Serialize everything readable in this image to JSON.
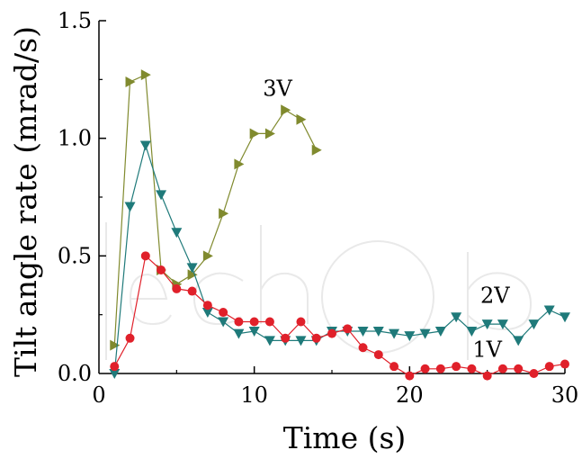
{
  "chart_data": {
    "type": "line",
    "xlabel": "Time (s)",
    "ylabel": "Tilt angle rate (mrad/s)",
    "xlim": [
      0,
      30
    ],
    "ylim": [
      0,
      1.5
    ],
    "x_ticks": [
      "0",
      "10",
      "20",
      "30"
    ],
    "y_ticks": [
      "0.0",
      "0.5",
      "1.0",
      "1.5"
    ],
    "grid": false,
    "watermark": "IntechOpen",
    "series": [
      {
        "name": "3V",
        "color": "#808a2e",
        "marker": "triangle-right",
        "points": [
          [
            1,
            0.12
          ],
          [
            2,
            1.24
          ],
          [
            3,
            1.27
          ],
          [
            4,
            0.44
          ],
          [
            5,
            0.38
          ],
          [
            6,
            0.42
          ],
          [
            7,
            0.5
          ],
          [
            8,
            0.68
          ],
          [
            9,
            0.89
          ],
          [
            10,
            1.02
          ],
          [
            11,
            1.02
          ],
          [
            12,
            1.12
          ],
          [
            13,
            1.08
          ],
          [
            14,
            0.95
          ]
        ]
      },
      {
        "name": "2V",
        "color": "#1f7a7a",
        "marker": "triangle-down",
        "points": [
          [
            1,
            0.0
          ],
          [
            2,
            0.71
          ],
          [
            3,
            0.97
          ],
          [
            4,
            0.76
          ],
          [
            5,
            0.6
          ],
          [
            6,
            0.45
          ],
          [
            7,
            0.26
          ],
          [
            8,
            0.22
          ],
          [
            9,
            0.17
          ],
          [
            10,
            0.18
          ],
          [
            11,
            0.14
          ],
          [
            12,
            0.14
          ],
          [
            13,
            0.14
          ],
          [
            14,
            0.14
          ],
          [
            15,
            0.18
          ],
          [
            16,
            0.18
          ],
          [
            17,
            0.18
          ],
          [
            18,
            0.18
          ],
          [
            19,
            0.17
          ],
          [
            20,
            0.16
          ],
          [
            21,
            0.17
          ],
          [
            22,
            0.18
          ],
          [
            23,
            0.24
          ],
          [
            24,
            0.18
          ],
          [
            25,
            0.21
          ],
          [
            26,
            0.21
          ],
          [
            27,
            0.14
          ],
          [
            28,
            0.21
          ],
          [
            29,
            0.27
          ],
          [
            30,
            0.24
          ]
        ]
      },
      {
        "name": "1V",
        "color": "#e0202a",
        "marker": "circle",
        "points": [
          [
            1,
            0.03
          ],
          [
            2,
            0.15
          ],
          [
            3,
            0.5
          ],
          [
            4,
            0.44
          ],
          [
            5,
            0.36
          ],
          [
            6,
            0.35
          ],
          [
            7,
            0.29
          ],
          [
            8,
            0.26
          ],
          [
            9,
            0.22
          ],
          [
            10,
            0.22
          ],
          [
            11,
            0.22
          ],
          [
            12,
            0.15
          ],
          [
            13,
            0.22
          ],
          [
            14,
            0.15
          ],
          [
            15,
            0.17
          ],
          [
            16,
            0.19
          ],
          [
            17,
            0.11
          ],
          [
            18,
            0.08
          ],
          [
            19,
            0.03
          ],
          [
            20,
            -0.01
          ],
          [
            21,
            0.02
          ],
          [
            22,
            0.02
          ],
          [
            23,
            0.03
          ],
          [
            24,
            0.02
          ],
          [
            25,
            -0.01
          ],
          [
            26,
            0.02
          ],
          [
            27,
            0.02
          ],
          [
            28,
            0.0
          ],
          [
            29,
            0.03
          ],
          [
            30,
            0.04
          ]
        ]
      }
    ],
    "series_labels": [
      {
        "text": "3V",
        "x": 11.5,
        "y": 1.18
      },
      {
        "text": "2V",
        "x": 25.5,
        "y": 0.3
      },
      {
        "text": "1V",
        "x": 25.0,
        "y": 0.07
      }
    ]
  }
}
